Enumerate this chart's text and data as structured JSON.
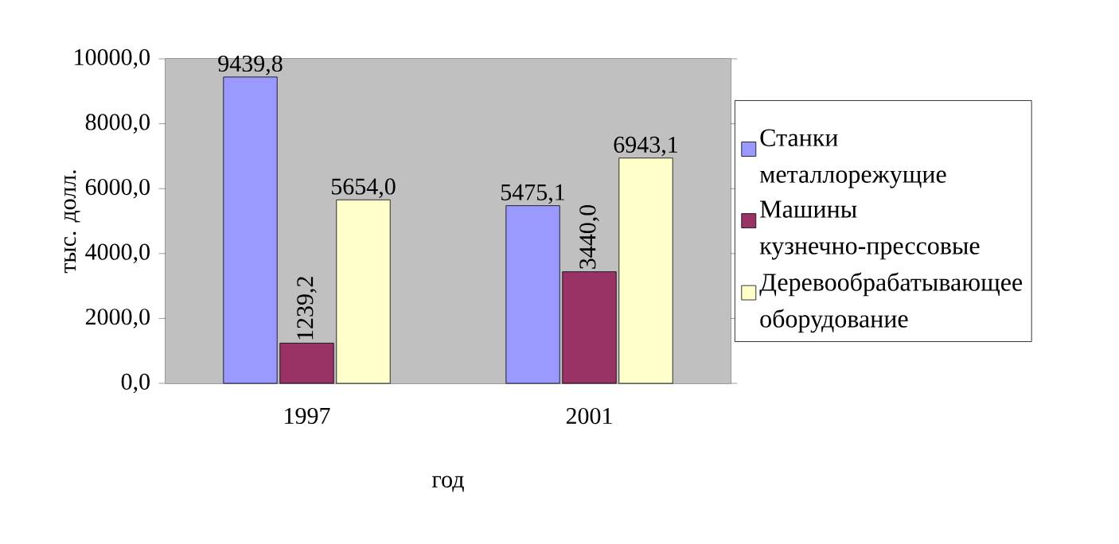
{
  "chart_data": {
    "type": "bar",
    "xlabel": "год",
    "ylabel": "тыс. долл.",
    "categories": [
      "1997",
      "2001"
    ],
    "series": [
      {
        "name": "Станки металлорежущие",
        "color": "#9999ff",
        "values": [
          9439.8,
          5475.1
        ],
        "value_labels": [
          "9439,8",
          "5475,1"
        ]
      },
      {
        "name": "Машины кузнечно-прессовые",
        "color": "#993366",
        "values": [
          1239.2,
          3440.0
        ],
        "value_labels": [
          "1239,2",
          "3440,0"
        ]
      },
      {
        "name": "Деревообрабатывающее оборудование",
        "color": "#ffffcc",
        "values": [
          5654.0,
          6943.1
        ],
        "value_labels": [
          "5654,0",
          "6943,1"
        ]
      }
    ],
    "ylim": [
      0,
      10000
    ],
    "yticks": [
      {
        "value": 0,
        "label": "0,0"
      },
      {
        "value": 2000,
        "label": "2000,0"
      },
      {
        "value": 4000,
        "label": "4000,0"
      },
      {
        "value": 6000,
        "label": "6000,0"
      },
      {
        "value": 8000,
        "label": "8000,0"
      },
      {
        "value": 10000,
        "label": "10000,0"
      }
    ],
    "legend": "right"
  }
}
